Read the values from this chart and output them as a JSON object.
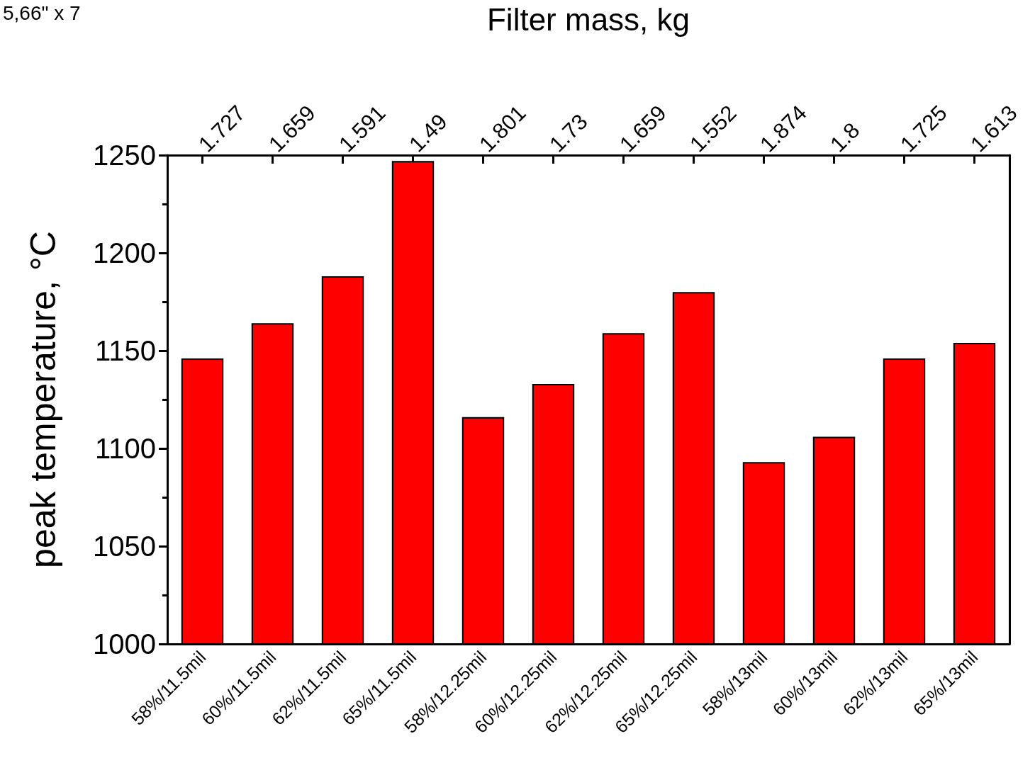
{
  "chart_data": {
    "type": "bar",
    "x2label": "Filter mass, kg",
    "ylabel": "peak temperature, °C",
    "categories": [
      "58%/11.5mil",
      "60%/11.5mil",
      "62%/11.5mil",
      "65%/11.5mil",
      "58%/12.25mil",
      "60%/12.25mil",
      "62%/12.25mil",
      "65%/12.25mil",
      "58%/13mil",
      "60%/13mil",
      "62%/13mil",
      "65%/13mil"
    ],
    "values": [
      1146,
      1164,
      1188,
      1247,
      1116,
      1133,
      1159,
      1180,
      1093,
      1106,
      1146,
      1154
    ],
    "color": "#ff0000",
    "ylim": [
      1000,
      1250
    ],
    "yticks": [
      1000,
      1050,
      1100,
      1150,
      1200,
      1250
    ],
    "grid": false,
    "annotations": [
      "5,66\" x 7",
      "1.727",
      "1.659",
      "1.591",
      "1.49",
      "1.801",
      "1.73",
      "1.659",
      "1.552",
      "1.874",
      "1.8",
      "1.725",
      "1.613"
    ]
  }
}
